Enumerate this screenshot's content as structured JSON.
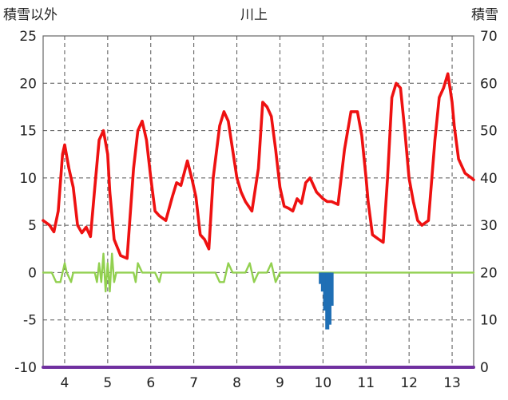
{
  "chart_data": {
    "type": "line",
    "title": "川上",
    "ylabel_left": "積雪以外",
    "ylabel_right": "積雪",
    "ylim_left": [
      -10,
      25
    ],
    "ylim_right": [
      0,
      70
    ],
    "yticks_left": [
      25,
      20,
      15,
      10,
      5,
      0,
      -5,
      -10
    ],
    "yticks_right": [
      70,
      60,
      50,
      40,
      30,
      20,
      10,
      0
    ],
    "xlim": [
      3.5,
      13.5
    ],
    "xticks": [
      4,
      5,
      6,
      7,
      8,
      9,
      10,
      11,
      12,
      13
    ],
    "grid": true,
    "legend": "none",
    "colors": {
      "temperature": "#ee1111",
      "precip_or_change": "#92d050",
      "bars": "#1f6fb5",
      "bottom_line": "#7030a0",
      "grid": "#555555",
      "frame": "#666666"
    },
    "series": [
      {
        "axis": "left",
        "color": "#ee1111",
        "kind": "line",
        "x": [
          3.5,
          3.65,
          3.75,
          3.85,
          3.95,
          4.0,
          4.1,
          4.2,
          4.3,
          4.4,
          4.5,
          4.6,
          4.7,
          4.8,
          4.9,
          5.0,
          5.05,
          5.15,
          5.3,
          5.45,
          5.6,
          5.7,
          5.8,
          5.9,
          6.0,
          6.1,
          6.2,
          6.35,
          6.5,
          6.6,
          6.7,
          6.85,
          6.95,
          7.05,
          7.15,
          7.25,
          7.35,
          7.45,
          7.6,
          7.7,
          7.8,
          7.9,
          8.0,
          8.1,
          8.2,
          8.35,
          8.5,
          8.6,
          8.7,
          8.8,
          8.9,
          9.0,
          9.1,
          9.2,
          9.3,
          9.4,
          9.5,
          9.6,
          9.7,
          9.85,
          10.0,
          10.1,
          10.2,
          10.35,
          10.5,
          10.65,
          10.8,
          10.9,
          11.0,
          11.05,
          11.15,
          11.3,
          11.4,
          11.5,
          11.6,
          11.7,
          11.8,
          11.9,
          12.0,
          12.1,
          12.2,
          12.3,
          12.45,
          12.6,
          12.7,
          12.8,
          12.9,
          13.0,
          13.05,
          13.15,
          13.3,
          13.45,
          13.5
        ],
        "y": [
          5.5,
          5.0,
          4.3,
          6.5,
          12.5,
          13.5,
          11.0,
          9.0,
          5.0,
          4.2,
          4.8,
          3.8,
          9.0,
          14.0,
          15.0,
          12.5,
          8.5,
          3.5,
          1.8,
          1.5,
          11.0,
          15.0,
          16.0,
          14.0,
          10.0,
          6.5,
          6.0,
          5.5,
          8.0,
          9.5,
          9.2,
          11.8,
          10.0,
          8.0,
          4.0,
          3.5,
          2.5,
          10.0,
          15.5,
          17.0,
          16.0,
          13.0,
          10.0,
          8.5,
          7.5,
          6.5,
          11.0,
          18.0,
          17.5,
          16.5,
          13.0,
          9.0,
          7.0,
          6.8,
          6.5,
          7.8,
          7.3,
          9.5,
          10.0,
          8.5,
          7.8,
          7.5,
          7.5,
          7.2,
          13.0,
          17.0,
          17.0,
          14.5,
          10.0,
          7.5,
          4.0,
          3.5,
          3.2,
          10.0,
          18.5,
          20.0,
          19.5,
          15.0,
          10.0,
          7.5,
          5.5,
          5.0,
          5.5,
          14.0,
          18.5,
          19.5,
          21.0,
          18.0,
          15.5,
          12.0,
          10.5,
          10.0,
          9.8
        ]
      },
      {
        "axis": "left",
        "color": "#92d050",
        "kind": "line",
        "x": [
          3.5,
          3.7,
          3.8,
          3.9,
          4.0,
          4.05,
          4.15,
          4.2,
          4.3,
          4.4,
          4.5,
          4.6,
          4.7,
          4.75,
          4.8,
          4.85,
          4.9,
          4.95,
          5.0,
          5.05,
          5.1,
          5.15,
          5.2,
          5.3,
          5.4,
          5.5,
          5.6,
          5.65,
          5.7,
          5.8,
          5.9,
          6.0,
          6.1,
          6.2,
          6.25,
          6.3,
          6.4,
          6.5,
          6.6,
          6.7,
          6.8,
          6.9,
          7.0,
          7.1,
          7.2,
          7.3,
          7.4,
          7.5,
          7.6,
          7.7,
          7.8,
          7.9,
          8.0,
          8.05,
          8.1,
          8.2,
          8.3,
          8.4,
          8.5,
          8.6,
          8.7,
          8.8,
          8.9,
          9.0,
          9.1,
          9.2,
          9.3,
          9.4,
          9.5,
          9.6,
          9.7,
          9.8,
          9.9,
          10.0,
          10.1,
          10.2,
          10.3,
          10.4,
          10.5,
          10.6,
          10.7,
          10.8,
          10.9,
          11.0,
          11.1,
          11.2,
          11.3,
          11.4,
          11.5,
          11.6,
          11.7,
          11.8,
          11.9,
          12.0,
          12.1,
          12.2,
          12.3,
          12.4,
          12.5,
          12.6,
          12.7,
          12.8,
          12.9,
          13.0,
          13.1,
          13.2,
          13.3,
          13.4,
          13.5
        ],
        "y": [
          0,
          0,
          -1,
          -1,
          1,
          0,
          -1,
          0,
          0,
          0,
          0,
          0,
          0,
          -1,
          1,
          -1,
          2,
          -2,
          1,
          -2,
          2,
          -1,
          0,
          0,
          0,
          0,
          0,
          -1,
          1,
          0,
          0,
          0,
          0,
          -1,
          0,
          0,
          0,
          0,
          0,
          0,
          0,
          0,
          0,
          0,
          0,
          0,
          0,
          0,
          -1,
          -1,
          1,
          0,
          0,
          0,
          0,
          0,
          1,
          -1,
          0,
          0,
          0,
          1,
          -1,
          0,
          0,
          0,
          0,
          0,
          0,
          0,
          0,
          0,
          0,
          0,
          0,
          0,
          0,
          0,
          0,
          0,
          0,
          0,
          0,
          0,
          0,
          0,
          0,
          0,
          0,
          0,
          0,
          0,
          0,
          0,
          0,
          0,
          0,
          0,
          0,
          0,
          0,
          0,
          0,
          0,
          0,
          0,
          0,
          0,
          0
        ]
      },
      {
        "axis": "left",
        "color": "#1f6fb5",
        "kind": "bar",
        "x": [
          9.95,
          10.0,
          10.05,
          10.1,
          10.15,
          10.2
        ],
        "y": [
          -1.2,
          -2.0,
          -4.0,
          -6.0,
          -5.5,
          -3.5
        ]
      },
      {
        "axis": "left",
        "color": "#7030a0",
        "kind": "line",
        "x": [
          3.5,
          13.5
        ],
        "y": [
          -10,
          -10
        ]
      }
    ]
  }
}
